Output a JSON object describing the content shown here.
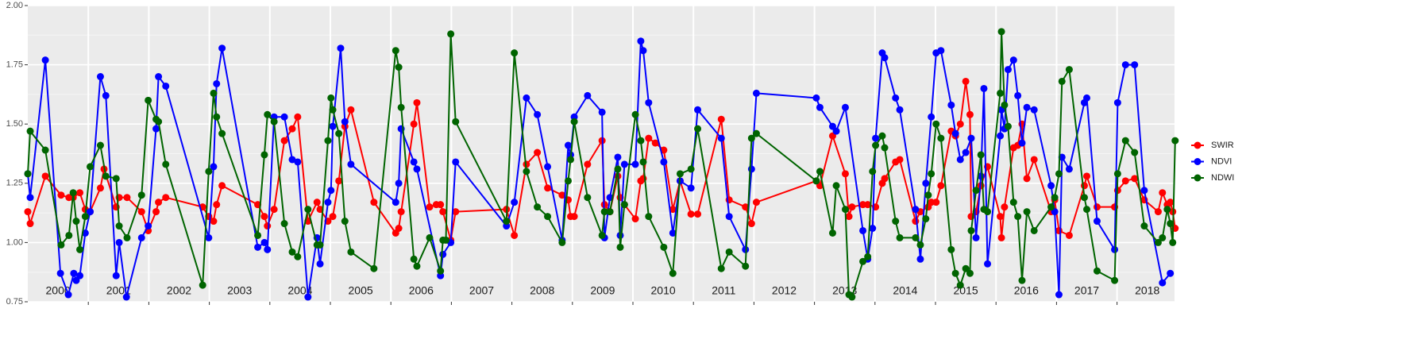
{
  "chart_data": {
    "type": "line",
    "xlim": [
      2000,
      2018.95
    ],
    "xticks": [
      2001,
      2002,
      2003,
      2004,
      2005,
      2006,
      2007,
      2008,
      2009,
      2010,
      2011,
      2012,
      2013,
      2014,
      2015,
      2016,
      2017,
      2018
    ],
    "year_labels": [
      2000,
      2001,
      2002,
      2003,
      2004,
      2005,
      2006,
      2007,
      2008,
      2009,
      2010,
      2011,
      2012,
      2013,
      2014,
      2015,
      2016,
      2017,
      2018
    ],
    "ylim": [
      0.75,
      2.0
    ],
    "yticks": [
      {
        "value": 0.75,
        "label": "0.75"
      },
      {
        "value": 1.0,
        "label": "1.00"
      },
      {
        "value": 1.25,
        "label": "1.25"
      },
      {
        "value": 1.5,
        "label": "1.50"
      },
      {
        "value": 1.75,
        "label": "1.75"
      },
      {
        "value": 2.0,
        "label": "2.00"
      }
    ],
    "grid": true,
    "legend": "right",
    "series": [
      {
        "name": "SWIR",
        "color": "#ff0000",
        "x": [
          2000.0,
          2000.04,
          2000.29,
          2000.55,
          2000.68,
          2000.75,
          2000.86,
          2000.95,
          2001.03,
          2001.2,
          2001.26,
          2001.46,
          2001.51,
          2001.64,
          2001.88,
          2001.99,
          2002.12,
          2002.16,
          2002.28,
          2002.89,
          2002.99,
          2003.07,
          2003.12,
          2003.21,
          2003.8,
          2003.91,
          2003.96,
          2004.07,
          2004.24,
          2004.37,
          2004.46,
          2004.63,
          2004.78,
          2004.83,
          2004.96,
          2005.04,
          2005.14,
          2005.24,
          2005.34,
          2005.72,
          2006.08,
          2006.13,
          2006.17,
          2006.38,
          2006.43,
          2006.64,
          2006.75,
          2006.82,
          2006.86,
          2006.99,
          2007.07,
          2007.91,
          2008.04,
          2008.24,
          2008.42,
          2008.59,
          2008.83,
          2008.93,
          2008.97,
          2009.03,
          2009.25,
          2009.49,
          2009.53,
          2009.62,
          2009.75,
          2009.79,
          2009.86,
          2010.04,
          2010.13,
          2010.17,
          2010.26,
          2010.37,
          2010.51,
          2010.66,
          2010.78,
          2010.96,
          2011.07,
          2011.46,
          2011.59,
          2011.86,
          2011.96,
          2012.04,
          2013.03,
          2013.09,
          2013.3,
          2013.51,
          2013.57,
          2013.62,
          2013.8,
          2013.88,
          2014.01,
          2014.12,
          2014.16,
          2014.34,
          2014.41,
          2014.67,
          2014.75,
          2014.88,
          2014.93,
          2015.01,
          2015.09,
          2015.26,
          2015.33,
          2015.41,
          2015.5,
          2015.57,
          2015.59,
          2015.67,
          2015.75,
          2015.86,
          2016.07,
          2016.09,
          2016.14,
          2016.29,
          2016.36,
          2016.43,
          2016.51,
          2016.63,
          2016.91,
          2016.97,
          2017.04,
          2017.21,
          2017.46,
          2017.5,
          2017.67,
          2017.96,
          2018.01,
          2018.14,
          2018.29,
          2018.45,
          2018.68,
          2018.75,
          2018.83,
          2018.88,
          2018.92,
          2018.96
        ],
        "values": [
          1.13,
          1.08,
          1.28,
          1.2,
          1.19,
          1.19,
          1.21,
          1.14,
          1.13,
          1.23,
          1.31,
          1.15,
          1.19,
          1.19,
          1.13,
          1.05,
          1.13,
          1.17,
          1.19,
          1.15,
          1.11,
          1.09,
          1.16,
          1.24,
          1.16,
          1.11,
          1.07,
          1.14,
          1.43,
          1.48,
          1.53,
          1.09,
          1.17,
          1.14,
          1.09,
          1.11,
          1.26,
          1.49,
          1.56,
          1.17,
          1.04,
          1.06,
          1.13,
          1.5,
          1.59,
          1.15,
          1.16,
          1.16,
          1.13,
          1.01,
          1.13,
          1.14,
          1.03,
          1.33,
          1.38,
          1.23,
          1.2,
          1.18,
          1.11,
          1.11,
          1.33,
          1.43,
          1.16,
          1.13,
          1.28,
          1.19,
          1.16,
          1.1,
          1.26,
          1.27,
          1.44,
          1.42,
          1.39,
          1.14,
          1.26,
          1.12,
          1.12,
          1.52,
          1.18,
          1.15,
          1.08,
          1.17,
          1.26,
          1.24,
          1.45,
          1.29,
          1.11,
          1.15,
          1.16,
          1.16,
          1.15,
          1.25,
          1.27,
          1.34,
          1.35,
          1.09,
          1.13,
          1.15,
          1.17,
          1.17,
          1.24,
          1.47,
          1.45,
          1.5,
          1.68,
          1.54,
          1.11,
          1.13,
          1.24,
          1.32,
          1.11,
          1.02,
          1.15,
          1.4,
          1.41,
          1.5,
          1.27,
          1.35,
          1.13,
          1.18,
          1.05,
          1.03,
          1.24,
          1.28,
          1.15,
          1.15,
          1.22,
          1.26,
          1.27,
          1.18,
          1.13,
          1.21,
          1.16,
          1.17,
          1.13,
          1.06
        ]
      },
      {
        "name": "NDVI",
        "color": "#0000ff",
        "x": [
          2000.0,
          2000.04,
          2000.29,
          2000.54,
          2000.67,
          2000.76,
          2000.8,
          2000.86,
          2000.95,
          2001.03,
          2001.2,
          2001.29,
          2001.46,
          2001.51,
          2001.63,
          2001.88,
          2001.99,
          2002.12,
          2002.16,
          2002.28,
          2002.99,
          2003.07,
          2003.12,
          2003.21,
          2003.8,
          2003.91,
          2003.96,
          2004.07,
          2004.24,
          2004.37,
          2004.46,
          2004.63,
          2004.78,
          2004.83,
          2004.96,
          2005.01,
          2005.04,
          2005.17,
          2005.24,
          2005.34,
          2006.08,
          2006.13,
          2006.17,
          2006.38,
          2006.43,
          2006.82,
          2006.86,
          2006.99,
          2007.07,
          2007.91,
          2008.04,
          2008.24,
          2008.42,
          2008.59,
          2008.83,
          2008.93,
          2008.97,
          2009.03,
          2009.25,
          2009.49,
          2009.53,
          2009.62,
          2009.75,
          2009.79,
          2009.86,
          2010.04,
          2010.13,
          2010.17,
          2010.26,
          2010.51,
          2010.66,
          2010.78,
          2010.96,
          2011.07,
          2011.46,
          2011.59,
          2011.86,
          2011.96,
          2012.04,
          2013.03,
          2013.09,
          2013.3,
          2013.36,
          2013.51,
          2013.8,
          2013.88,
          2013.96,
          2014.01,
          2014.12,
          2014.16,
          2014.34,
          2014.41,
          2014.67,
          2014.75,
          2014.84,
          2014.93,
          2015.01,
          2015.09,
          2015.26,
          2015.33,
          2015.41,
          2015.5,
          2015.59,
          2015.67,
          2015.75,
          2015.8,
          2015.86,
          2016.07,
          2016.09,
          2016.14,
          2016.2,
          2016.29,
          2016.36,
          2016.43,
          2016.51,
          2016.63,
          2016.91,
          2016.97,
          2017.04,
          2017.09,
          2017.21,
          2017.46,
          2017.5,
          2017.67,
          2017.96,
          2018.01,
          2018.14,
          2018.29,
          2018.45,
          2018.75,
          2018.88
        ],
        "values": [
          1.29,
          1.19,
          1.77,
          0.87,
          0.78,
          0.87,
          0.84,
          0.86,
          1.04,
          1.13,
          1.7,
          1.62,
          0.86,
          1.0,
          0.77,
          1.02,
          1.07,
          1.48,
          1.7,
          1.66,
          1.02,
          1.32,
          1.67,
          1.82,
          0.98,
          1.0,
          0.97,
          1.53,
          1.53,
          1.35,
          1.34,
          0.77,
          1.02,
          0.91,
          1.17,
          1.22,
          1.49,
          1.82,
          1.51,
          1.33,
          1.17,
          1.25,
          1.48,
          1.34,
          1.31,
          0.86,
          0.95,
          1.0,
          1.34,
          1.07,
          1.17,
          1.61,
          1.54,
          1.32,
          1.01,
          1.41,
          1.37,
          1.53,
          1.62,
          1.55,
          1.02,
          1.19,
          1.36,
          1.03,
          1.33,
          1.33,
          1.85,
          1.81,
          1.59,
          1.34,
          1.04,
          1.26,
          1.23,
          1.56,
          1.44,
          1.11,
          0.97,
          1.31,
          1.63,
          1.61,
          1.57,
          1.49,
          1.47,
          1.57,
          1.05,
          0.93,
          1.06,
          1.44,
          1.8,
          1.78,
          1.61,
          1.56,
          1.14,
          0.93,
          1.25,
          1.53,
          1.8,
          1.81,
          1.58,
          1.46,
          1.35,
          1.38,
          1.44,
          1.02,
          1.28,
          1.65,
          0.91,
          1.45,
          1.56,
          1.48,
          1.73,
          1.77,
          1.62,
          1.42,
          1.57,
          1.56,
          1.24,
          1.13,
          0.78,
          1.36,
          1.31,
          1.59,
          1.61,
          1.09,
          0.97,
          1.59,
          1.75,
          1.75,
          1.22,
          0.83,
          0.87
        ]
      },
      {
        "name": "NDWI",
        "color": "#006400",
        "x": [
          2000.0,
          2000.04,
          2000.29,
          2000.55,
          2000.68,
          2000.75,
          2000.8,
          2000.86,
          2000.95,
          2001.03,
          2001.2,
          2001.29,
          2001.46,
          2001.51,
          2001.64,
          2001.88,
          2001.99,
          2002.12,
          2002.16,
          2002.28,
          2002.89,
          2002.99,
          2003.07,
          2003.12,
          2003.21,
          2003.8,
          2003.91,
          2003.96,
          2004.07,
          2004.24,
          2004.37,
          2004.46,
          2004.63,
          2004.78,
          2004.83,
          2004.96,
          2005.01,
          2005.04,
          2005.14,
          2005.24,
          2005.34,
          2005.72,
          2006.08,
          2006.13,
          2006.17,
          2006.38,
          2006.43,
          2006.64,
          2006.82,
          2006.86,
          2006.91,
          2006.99,
          2007.07,
          2007.91,
          2008.04,
          2008.24,
          2008.42,
          2008.59,
          2008.83,
          2008.93,
          2008.97,
          2009.03,
          2009.25,
          2009.49,
          2009.53,
          2009.62,
          2009.75,
          2009.79,
          2009.86,
          2010.04,
          2010.13,
          2010.17,
          2010.26,
          2010.51,
          2010.66,
          2010.78,
          2010.96,
          2011.07,
          2011.46,
          2011.59,
          2011.86,
          2011.96,
          2012.04,
          2013.03,
          2013.09,
          2013.3,
          2013.36,
          2013.51,
          2013.57,
          2013.62,
          2013.8,
          2013.88,
          2013.96,
          2014.01,
          2014.12,
          2014.16,
          2014.34,
          2014.41,
          2014.67,
          2014.75,
          2014.84,
          2014.88,
          2014.93,
          2015.01,
          2015.09,
          2015.26,
          2015.33,
          2015.41,
          2015.5,
          2015.57,
          2015.59,
          2015.67,
          2015.75,
          2015.8,
          2015.86,
          2016.07,
          2016.09,
          2016.14,
          2016.2,
          2016.29,
          2016.36,
          2016.43,
          2016.51,
          2016.63,
          2016.91,
          2016.97,
          2017.04,
          2017.09,
          2017.21,
          2017.46,
          2017.5,
          2017.67,
          2017.96,
          2018.01,
          2018.14,
          2018.29,
          2018.45,
          2018.68,
          2018.75,
          2018.83,
          2018.88,
          2018.92,
          2018.96
        ],
        "values": [
          1.29,
          1.47,
          1.39,
          0.99,
          1.03,
          1.21,
          1.09,
          0.97,
          1.11,
          1.32,
          1.41,
          1.28,
          1.27,
          1.07,
          1.02,
          1.2,
          1.6,
          1.52,
          1.51,
          1.33,
          0.82,
          1.3,
          1.63,
          1.53,
          1.46,
          1.03,
          1.37,
          1.54,
          1.51,
          1.08,
          0.96,
          0.94,
          1.14,
          0.99,
          0.99,
          1.43,
          1.61,
          1.56,
          1.46,
          1.09,
          0.96,
          0.89,
          1.81,
          1.74,
          1.57,
          0.93,
          0.9,
          1.02,
          0.88,
          1.01,
          1.01,
          1.88,
          1.51,
          1.09,
          1.8,
          1.3,
          1.15,
          1.11,
          1.0,
          1.26,
          1.35,
          1.51,
          1.19,
          1.03,
          1.13,
          1.13,
          1.31,
          0.98,
          1.16,
          1.54,
          1.43,
          1.34,
          1.11,
          0.98,
          0.87,
          1.29,
          1.31,
          1.48,
          0.89,
          0.96,
          0.9,
          1.44,
          1.46,
          1.26,
          1.3,
          1.04,
          1.24,
          1.14,
          0.78,
          0.77,
          0.92,
          0.94,
          1.3,
          1.41,
          1.45,
          1.4,
          1.09,
          1.02,
          1.02,
          0.99,
          1.1,
          1.2,
          1.29,
          1.5,
          1.44,
          0.97,
          0.87,
          0.82,
          0.89,
          0.87,
          1.05,
          1.22,
          1.37,
          1.14,
          1.13,
          1.63,
          1.89,
          1.58,
          1.49,
          1.17,
          1.11,
          0.84,
          1.13,
          1.05,
          1.15,
          1.19,
          1.29,
          1.68,
          1.73,
          1.19,
          1.14,
          0.88,
          0.84,
          1.29,
          1.43,
          1.38,
          1.07,
          1.0,
          1.02,
          1.14,
          1.08,
          1.0,
          1.43
        ]
      }
    ]
  }
}
